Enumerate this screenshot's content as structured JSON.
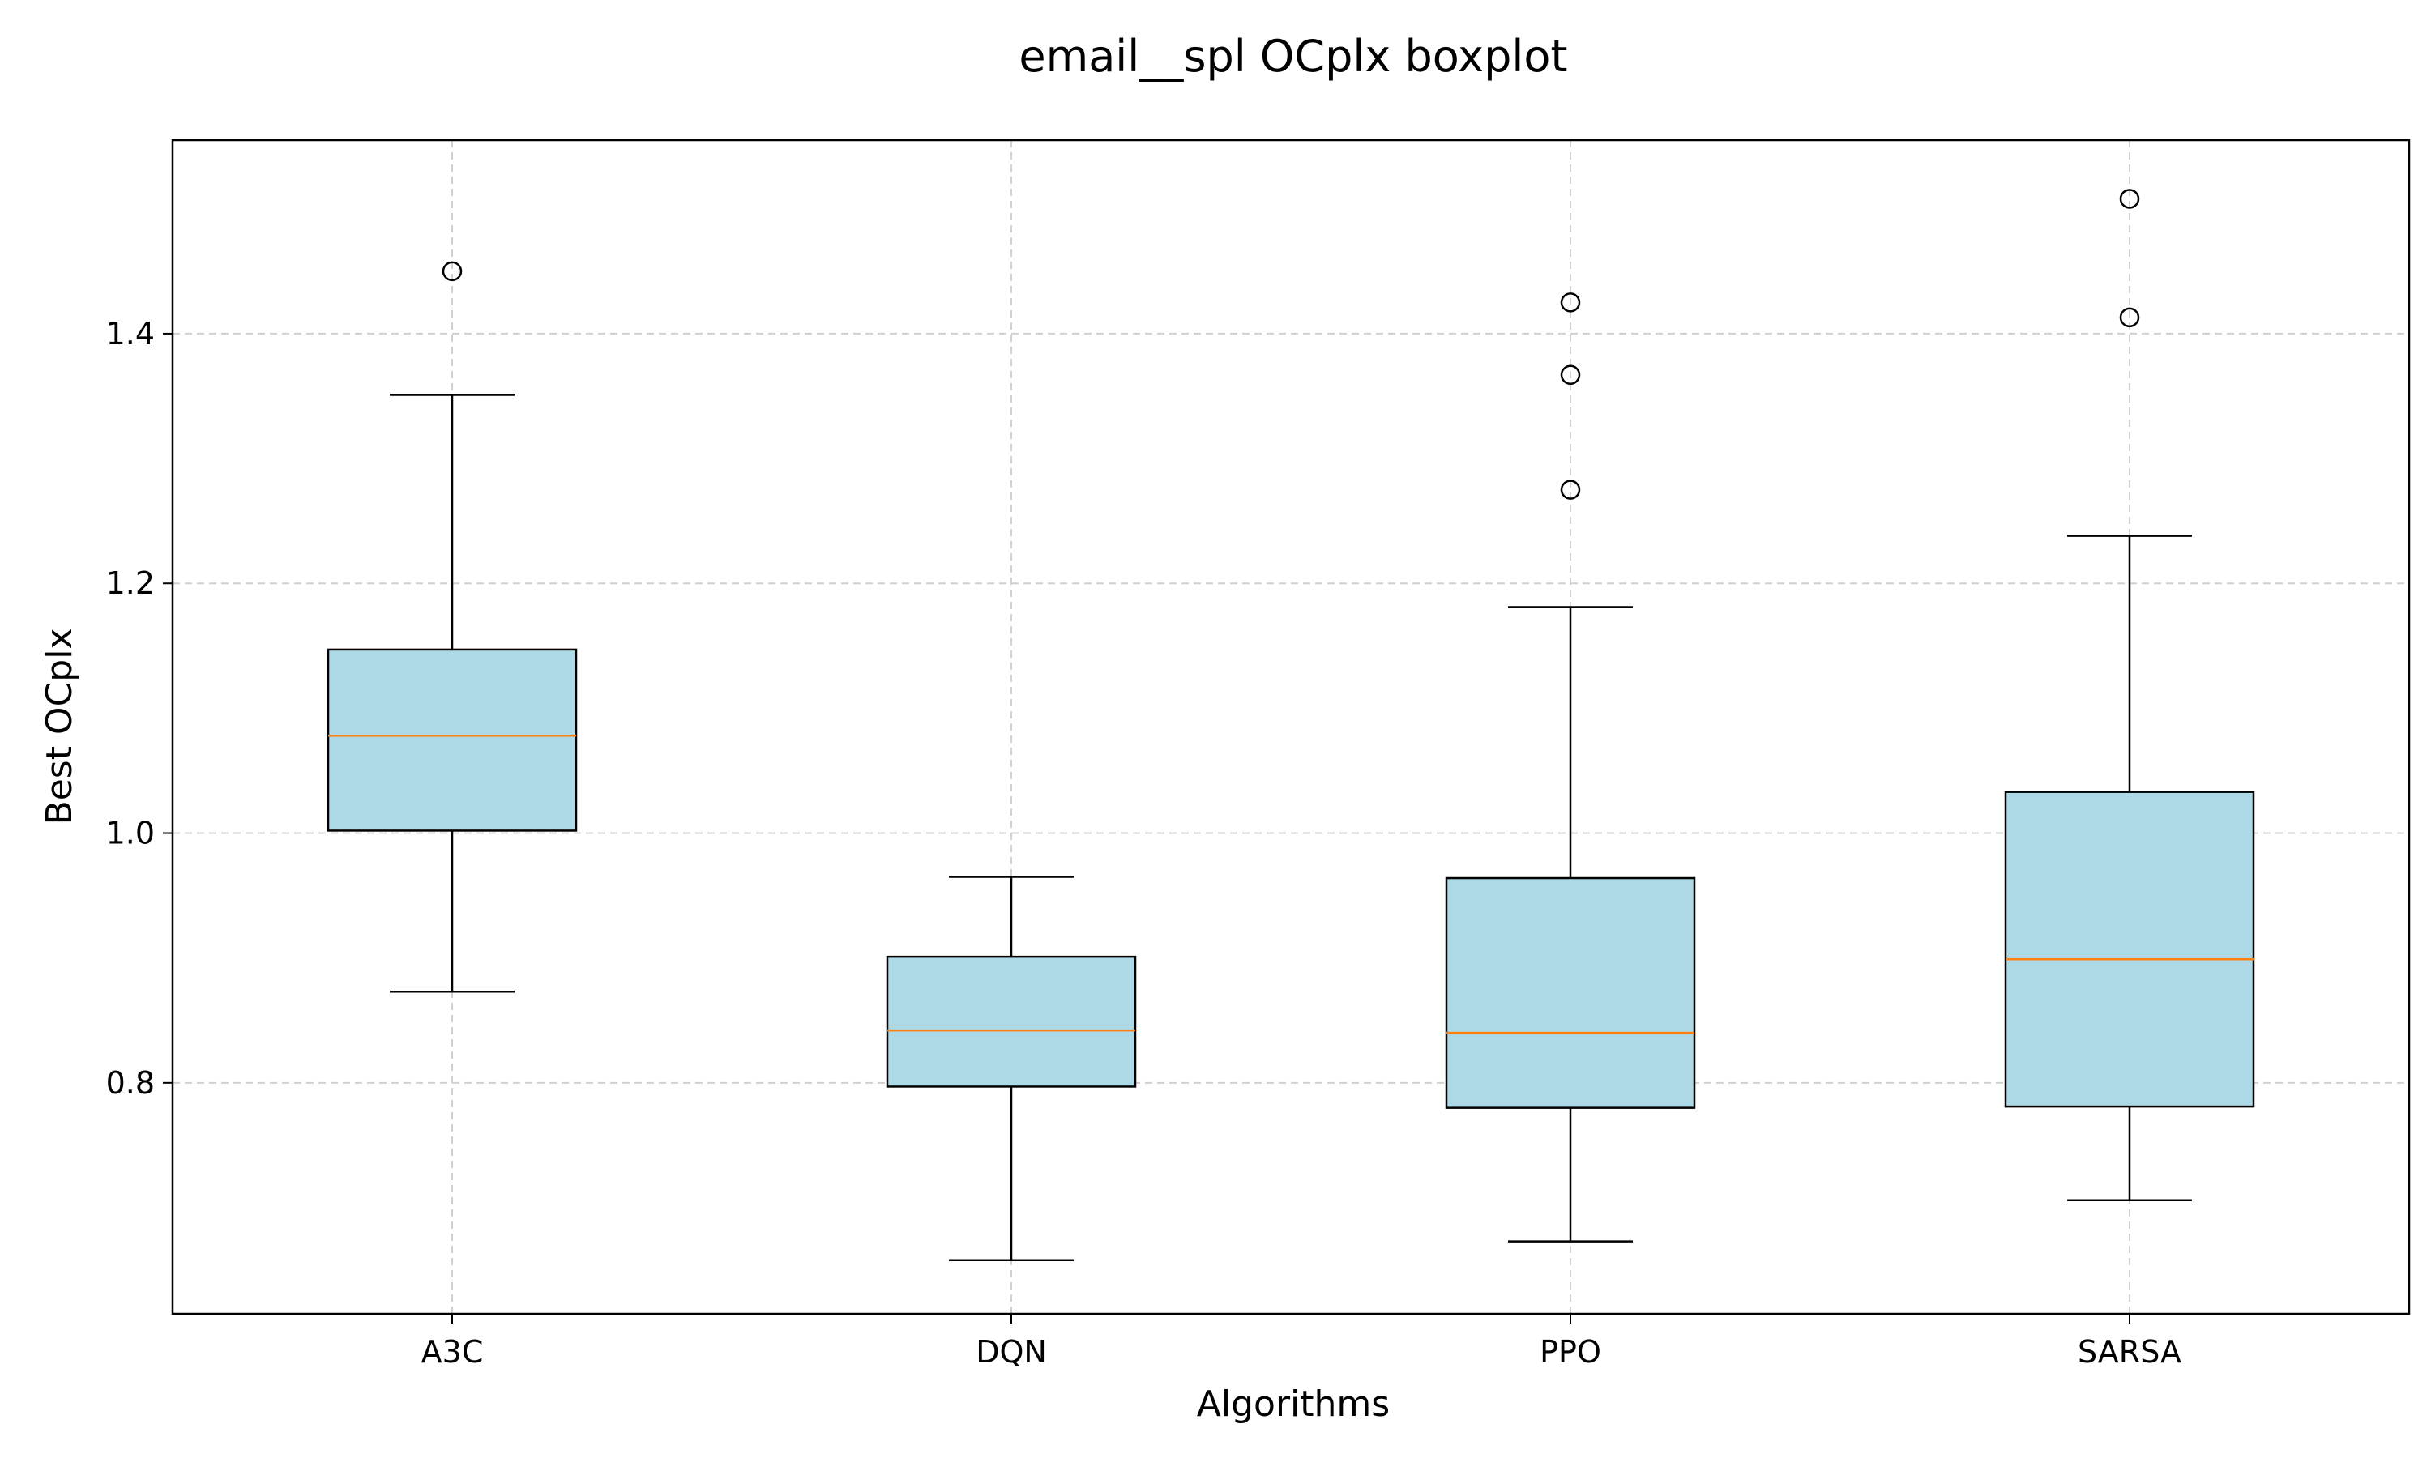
{
  "chart_data": {
    "type": "boxplot",
    "title": "email__spl OCplx boxplot",
    "xlabel": "Algorithms",
    "ylabel": "Best OCplx",
    "categories": [
      "A3C",
      "DQN",
      "PPO",
      "SARSA"
    ],
    "ylim": [
      0.615,
      1.555
    ],
    "yticks": [
      0.8,
      1.0,
      1.2,
      1.4
    ],
    "ytick_labels": [
      "0.8",
      "1.0",
      "1.2",
      "1.4"
    ],
    "grid": true,
    "colors": {
      "box_fill": "#add8e6",
      "box_edge": "#000000",
      "median": "#ff7f0e",
      "whisker": "#000000",
      "grid": "#d0d0d0"
    },
    "boxes": [
      {
        "name": "A3C",
        "whisker_low": 0.873,
        "q1": 1.002,
        "median": 1.078,
        "q3": 1.147,
        "whisker_high": 1.351,
        "outliers": [
          1.45
        ]
      },
      {
        "name": "DQN",
        "whisker_low": 0.658,
        "q1": 0.797,
        "median": 0.842,
        "q3": 0.901,
        "whisker_high": 0.965,
        "outliers": []
      },
      {
        "name": "PPO",
        "whisker_low": 0.673,
        "q1": 0.78,
        "median": 0.84,
        "q3": 0.964,
        "whisker_high": 1.181,
        "outliers": [
          1.275,
          1.367,
          1.425
        ]
      },
      {
        "name": "SARSA",
        "whisker_low": 0.706,
        "q1": 0.781,
        "median": 0.899,
        "q3": 1.033,
        "whisker_high": 1.238,
        "outliers": [
          1.413,
          1.508
        ]
      }
    ]
  }
}
